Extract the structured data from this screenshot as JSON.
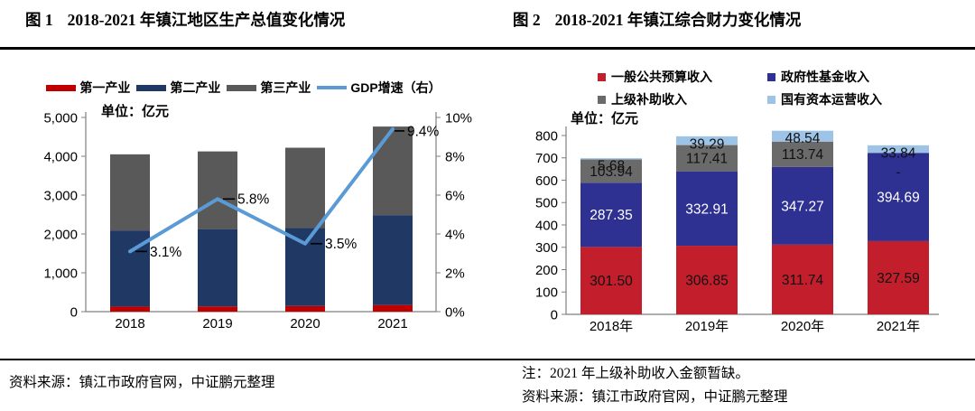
{
  "figure1": {
    "label": "图 1",
    "title": "2018-2021 年镇江地区生产总值变化情况",
    "unit": "单位：亿元",
    "source": "资料来源：镇江市政府官网，中证鹏元整理"
  },
  "figure2": {
    "label": "图 2",
    "title": "2018-2021 年镇江综合财力变化情况",
    "unit": "单位：亿元",
    "note": "注：2021 年上级补助收入金额暂缺。",
    "source": "资料来源：镇江市政府官网，中证鹏元整理"
  },
  "chart_data": [
    {
      "type": "bar",
      "subtype": "stacked-bars-with-line",
      "title": "2018-2021 年镇江地区生产总值变化情况",
      "unit": "亿元",
      "categories": [
        "2018",
        "2019",
        "2020",
        "2021"
      ],
      "series": [
        {
          "name": "第一产业",
          "type": "bar",
          "color": "#C00000",
          "values": [
            130,
            135,
            145,
            170
          ],
          "estimated": true
        },
        {
          "name": "第二产业",
          "type": "bar",
          "color": "#1F3864",
          "values": [
            1960,
            1990,
            2005,
            2315
          ],
          "estimated": true
        },
        {
          "name": "第三产业",
          "type": "bar",
          "color": "#595959",
          "values": [
            1960,
            2000,
            2070,
            2280
          ],
          "estimated": true
        }
      ],
      "line_series": {
        "name": "GDP增速（右）",
        "type": "line",
        "axis": "right",
        "color": "#5B9BD5",
        "values": [
          3.1,
          5.8,
          3.5,
          9.4
        ],
        "labels": [
          "3.1%",
          "5.8%",
          "3.5%",
          "9.4%"
        ]
      },
      "left_axis": {
        "min": 0,
        "max": 5000,
        "step": 1000,
        "tick_labels": [
          "0",
          "1,000",
          "2,000",
          "3,000",
          "4,000",
          "5,000"
        ]
      },
      "right_axis": {
        "min": 0,
        "max": 10,
        "step": 2,
        "tick_labels": [
          "0%",
          "2%",
          "4%",
          "6%",
          "8%",
          "10%"
        ]
      },
      "legend_position": "top",
      "grid": false
    },
    {
      "type": "bar",
      "subtype": "stacked",
      "title": "2018-2021 年镇江综合财力变化情况",
      "unit": "亿元",
      "categories": [
        "2018年",
        "2019年",
        "2020年",
        "2021年"
      ],
      "series": [
        {
          "name": "一般公共预算收入",
          "color": "#C21E2C",
          "label_color": "#111111",
          "values": [
            301.5,
            306.85,
            311.74,
            327.59
          ],
          "labels": [
            "301.50",
            "306.85",
            "311.74",
            "327.59"
          ]
        },
        {
          "name": "政府性基金收入",
          "color": "#2E3192",
          "label_color": "#FFFFFF",
          "values": [
            287.35,
            332.91,
            347.27,
            394.69
          ],
          "labels": [
            "287.35",
            "332.91",
            "347.27",
            "394.69"
          ]
        },
        {
          "name": "上级补助收入",
          "color": "#6A6A6A",
          "label_color": "#111111",
          "values": [
            103.94,
            117.41,
            113.74,
            null
          ],
          "labels": [
            "103.94",
            "117.41",
            "113.74",
            "-"
          ]
        },
        {
          "name": "国有资本运营收入",
          "color": "#9DC3E6",
          "label_color": "#111111",
          "values": [
            5.68,
            39.29,
            48.54,
            33.84
          ],
          "labels": [
            "5.68",
            "39.29",
            "48.54",
            "33.84"
          ]
        }
      ],
      "y_axis": {
        "min": 0,
        "max": 800,
        "step": 100
      },
      "legend_position": "top",
      "grid": false
    }
  ]
}
